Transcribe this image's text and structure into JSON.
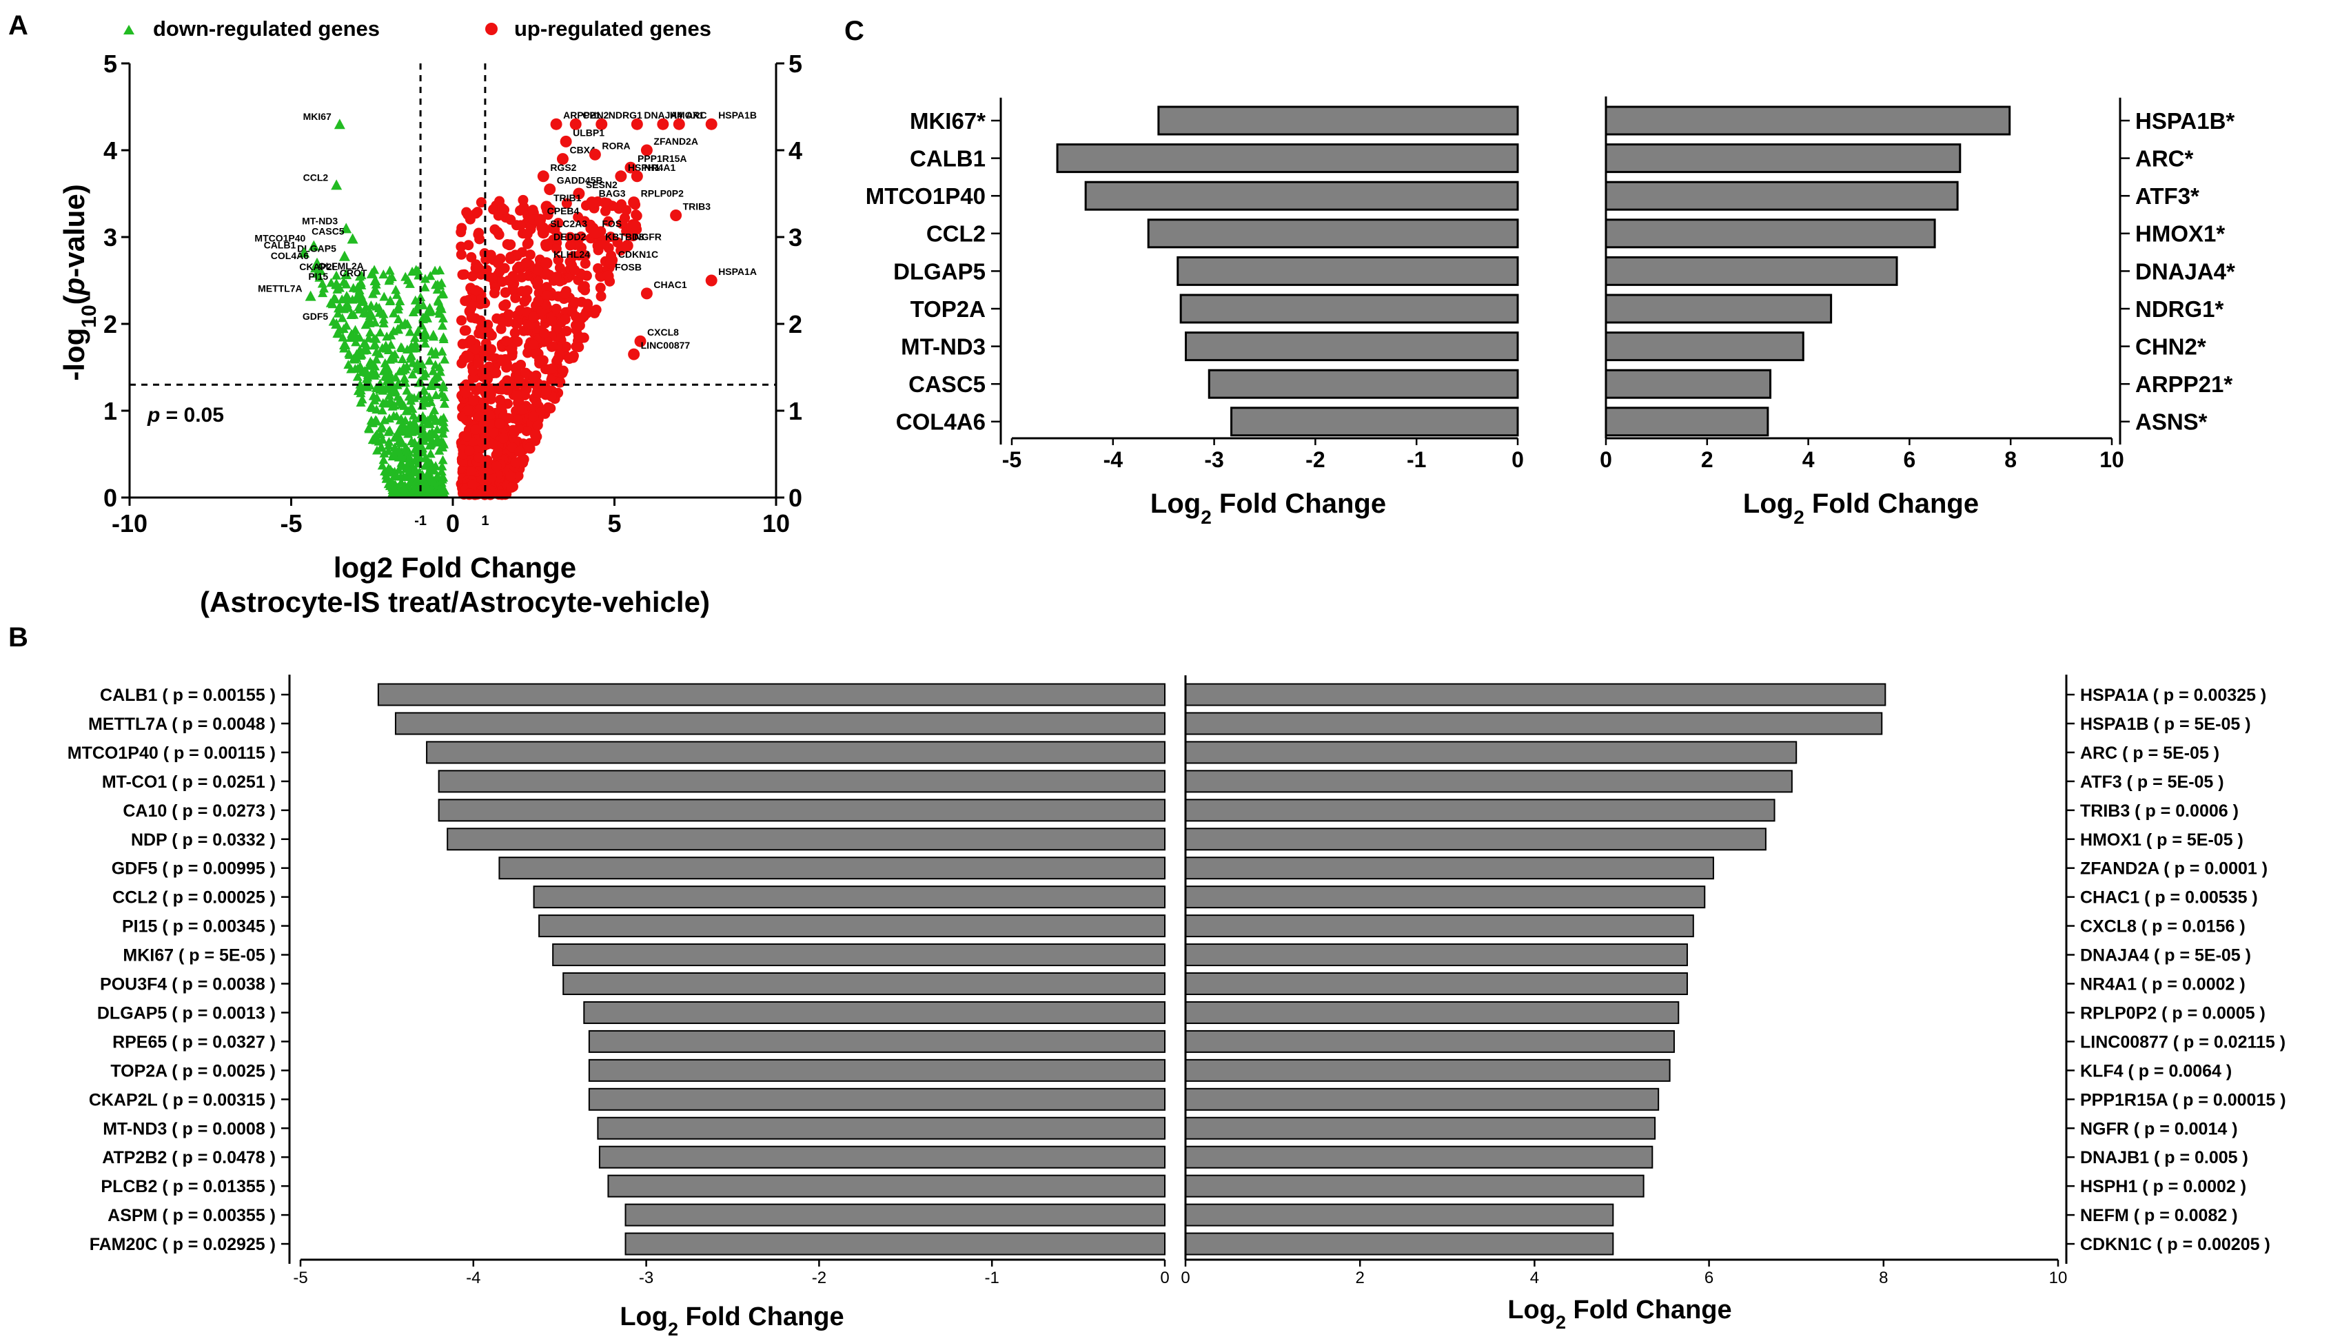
{
  "panel_labels": {
    "a": "A",
    "b": "B",
    "c": "C"
  },
  "colors": {
    "down": "#22bb22",
    "up": "#ee1111",
    "bar": "#808080",
    "bar_stroke": "#000000"
  },
  "chart_data": [
    {
      "id": "volcano",
      "type": "scatter",
      "title": "",
      "xlabel": "log2 Fold Change",
      "xlabel2": "(Astrocyte-IS treat/Astrocyte-vehicle)",
      "ylabel": "-log10(p-value)",
      "ylabel_parts": [
        "-log",
        "10",
        "(",
        "p",
        "-value)"
      ],
      "xlim": [
        -10,
        10
      ],
      "ylim": [
        0,
        5
      ],
      "x_ticks": [
        "-10",
        "-5",
        "0",
        "5",
        "10"
      ],
      "y_ticks": [
        "0",
        "1",
        "2",
        "3",
        "4",
        "5"
      ],
      "threshold_ticks": [
        "-1",
        "1"
      ],
      "fc_thresholds": [
        -1,
        1
      ],
      "p_threshold_y": 1.3,
      "p_label": "p = 0.05",
      "p_label_parts": [
        "p",
        " = 0.05"
      ],
      "legend": {
        "down": "down-regulated genes",
        "up": "up-regulated genes"
      },
      "down_labeled": [
        {
          "gene": "MKI67",
          "x": -3.5,
          "y": 4.3
        },
        {
          "gene": "CCL2",
          "x": -3.6,
          "y": 3.6
        },
        {
          "gene": "MT-ND3",
          "x": -3.3,
          "y": 3.1
        },
        {
          "gene": "CASC5",
          "x": -3.1,
          "y": 2.98
        },
        {
          "gene": "MTCO1P40",
          "x": -4.3,
          "y": 2.9
        },
        {
          "gene": "DLGAP5",
          "x": -3.35,
          "y": 2.78
        },
        {
          "gene": "CALB1",
          "x": -4.6,
          "y": 2.82
        },
        {
          "gene": "COL4A6",
          "x": -4.2,
          "y": 2.7
        },
        {
          "gene": "OLFML2A",
          "x": -2.5,
          "y": 2.58
        },
        {
          "gene": "CKAP2L",
          "x": -3.3,
          "y": 2.57
        },
        {
          "gene": "CROT",
          "x": -2.4,
          "y": 2.5
        },
        {
          "gene": "PI15",
          "x": -3.6,
          "y": 2.46
        },
        {
          "gene": "METTL7A",
          "x": -4.4,
          "y": 2.32
        },
        {
          "gene": "GDF5",
          "x": -3.6,
          "y": 2.0
        }
      ],
      "up_labeled": [
        {
          "gene": "CHN2",
          "x": 3.8,
          "y": 4.3
        },
        {
          "gene": "NDRG1",
          "x": 4.6,
          "y": 4.3
        },
        {
          "gene": "HMOX1",
          "x": 6.5,
          "y": 4.3
        },
        {
          "gene": "ARC",
          "x": 7.0,
          "y": 4.3
        },
        {
          "gene": "HSPA1B",
          "x": 8.0,
          "y": 4.3
        },
        {
          "gene": "ARPP21",
          "x": 3.2,
          "y": 4.3
        },
        {
          "gene": "ULBP1",
          "x": 3.5,
          "y": 4.1
        },
        {
          "gene": "DNAJA4",
          "x": 5.7,
          "y": 4.3
        },
        {
          "gene": "ZFAND2A",
          "x": 6.0,
          "y": 4.0
        },
        {
          "gene": "CBX4",
          "x": 3.4,
          "y": 3.9
        },
        {
          "gene": "RORA",
          "x": 4.4,
          "y": 3.95
        },
        {
          "gene": "PPP1R15A",
          "x": 5.5,
          "y": 3.8
        },
        {
          "gene": "RGS2",
          "x": 2.8,
          "y": 3.7
        },
        {
          "gene": "HSPH1",
          "x": 5.2,
          "y": 3.7
        },
        {
          "gene": "NR4A1",
          "x": 5.7,
          "y": 3.7
        },
        {
          "gene": "GADD45B",
          "x": 3.0,
          "y": 3.55
        },
        {
          "gene": "SESN2",
          "x": 3.9,
          "y": 3.5
        },
        {
          "gene": "BAG3",
          "x": 4.3,
          "y": 3.4
        },
        {
          "gene": "RPLP0P2",
          "x": 5.6,
          "y": 3.4
        },
        {
          "gene": "TRIB1",
          "x": 2.9,
          "y": 3.35
        },
        {
          "gene": "TRIB3",
          "x": 6.9,
          "y": 3.25
        },
        {
          "gene": "CPEB4",
          "x": 2.7,
          "y": 3.2
        },
        {
          "gene": "SLC2A3",
          "x": 2.8,
          "y": 3.05
        },
        {
          "gene": "FOS",
          "x": 4.4,
          "y": 3.05
        },
        {
          "gene": "DEDD2",
          "x": 2.9,
          "y": 2.9
        },
        {
          "gene": "KBTBD8",
          "x": 4.5,
          "y": 2.9
        },
        {
          "gene": "NGFR",
          "x": 5.4,
          "y": 2.9
        },
        {
          "gene": "KLHL24",
          "x": 2.9,
          "y": 2.7
        },
        {
          "gene": "CDKN1C",
          "x": 4.9,
          "y": 2.7
        },
        {
          "gene": "FOSB",
          "x": 4.8,
          "y": 2.55
        },
        {
          "gene": "HSPA1A",
          "x": 8.0,
          "y": 2.5
        },
        {
          "gene": "CHAC1",
          "x": 6.0,
          "y": 2.35
        },
        {
          "gene": "CXCL8",
          "x": 5.8,
          "y": 1.8
        },
        {
          "gene": "LINC00877",
          "x": 5.6,
          "y": 1.65
        }
      ]
    },
    {
      "id": "top20_down",
      "type": "bar",
      "orientation": "horizontal",
      "xlabel": "Log2 Fold Change",
      "xlabel_parts": [
        "Log",
        "2",
        " Fold Change"
      ],
      "xlim": [
        -5,
        0
      ],
      "x_ticks": [
        "-5",
        "-4",
        "-3",
        "-2",
        "-1",
        "0"
      ],
      "categories": [
        "CALB1 ( p = 0.00155 )",
        "METTL7A ( p = 0.0048 )",
        "MTCO1P40 ( p = 0.00115 )",
        "MT-CO1 ( p = 0.0251 )",
        "CA10 ( p = 0.0273 )",
        "NDP ( p = 0.0332 )",
        "GDF5 ( p = 0.00995 )",
        "CCL2 ( p = 0.00025 )",
        "PI15 ( p = 0.00345 )",
        "MKI67 ( p = 5E-05 )",
        "POU3F4 ( p = 0.0038 )",
        "DLGAP5 ( p = 0.0013 )",
        "RPE65 ( p = 0.0327 )",
        "TOP2A ( p = 0.0025 )",
        "CKAP2L ( p = 0.00315 )",
        "MT-ND3 ( p = 0.0008 )",
        "ATP2B2 ( p = 0.0478 )",
        "PLCB2 ( p = 0.01355 )",
        "ASPM ( p = 0.00355 )",
        "FAM20C ( p = 0.02925 )"
      ],
      "values": [
        -4.55,
        -4.45,
        -4.27,
        -4.2,
        -4.2,
        -4.15,
        -3.85,
        -3.65,
        -3.62,
        -3.54,
        -3.48,
        -3.36,
        -3.33,
        -3.33,
        -3.33,
        -3.28,
        -3.27,
        -3.22,
        -3.12,
        -3.12
      ]
    },
    {
      "id": "top20_up",
      "type": "bar",
      "orientation": "horizontal",
      "xlabel": "Log2 Fold Change",
      "xlabel_parts": [
        "Log",
        "2",
        " Fold Change"
      ],
      "xlim": [
        0,
        10
      ],
      "x_ticks": [
        "0",
        "2",
        "4",
        "6",
        "8",
        "10"
      ],
      "categories": [
        "HSPA1A ( p = 0.00325 )",
        "HSPA1B ( p = 5E-05 )",
        "ARC ( p = 5E-05 )",
        "ATF3 ( p = 5E-05 )",
        "TRIB3 ( p = 0.0006 )",
        "HMOX1 ( p = 5E-05 )",
        "ZFAND2A ( p = 0.0001 )",
        "CHAC1 ( p = 0.00535 )",
        "CXCL8 ( p = 0.0156 )",
        "DNAJA4 ( p = 5E-05 )",
        "NR4A1 ( p = 0.0002 )",
        "RPLP0P2 ( p = 0.0005 )",
        "LINC00877 ( p = 0.02115 )",
        "KLF4 ( p = 0.0064 )",
        "PPP1R15A ( p = 0.00015 )",
        "NGFR ( p = 0.0014 )",
        "DNAJB1 ( p = 0.005 )",
        "HSPH1 ( p = 0.0002 )",
        "NEFM ( p = 0.0082 )",
        "CDKN1C ( p = 0.00205 )"
      ],
      "values": [
        8.02,
        7.98,
        7.0,
        6.95,
        6.75,
        6.65,
        6.05,
        5.95,
        5.82,
        5.75,
        5.75,
        5.65,
        5.6,
        5.55,
        5.42,
        5.38,
        5.35,
        5.25,
        4.9,
        4.9
      ]
    },
    {
      "id": "validated_down",
      "type": "bar",
      "orientation": "horizontal",
      "xlabel": "Log2 Fold Change",
      "xlabel_parts": [
        "Log",
        "2",
        " Fold Change"
      ],
      "xlim": [
        -5,
        0
      ],
      "x_ticks": [
        "-5",
        "-4",
        "-3",
        "-2",
        "-1",
        "0"
      ],
      "categories": [
        "MKI67*",
        "CALB1",
        "MTCO1P40",
        "CCL2",
        "DLGAP5",
        "TOP2A",
        "MT-ND3",
        "CASC5",
        "COL4A6"
      ],
      "values": [
        -3.55,
        -4.55,
        -4.27,
        -3.65,
        -3.36,
        -3.33,
        -3.28,
        -3.05,
        -2.83
      ]
    },
    {
      "id": "validated_up",
      "type": "bar",
      "orientation": "horizontal",
      "xlabel": "Log2 Fold Change",
      "xlabel_parts": [
        "Log",
        "2",
        " Fold Change"
      ],
      "xlim": [
        0,
        10
      ],
      "x_ticks": [
        "0",
        "2",
        "4",
        "6",
        "8",
        "10"
      ],
      "categories": [
        "HSPA1B*",
        "ARC*",
        "ATF3*",
        "HMOX1*",
        "DNAJA4*",
        "NDRG1*",
        "CHN2*",
        "ARPP21*",
        "ASNS*"
      ],
      "values": [
        7.98,
        7.0,
        6.95,
        6.5,
        5.75,
        4.45,
        3.9,
        3.25,
        3.2
      ]
    }
  ]
}
